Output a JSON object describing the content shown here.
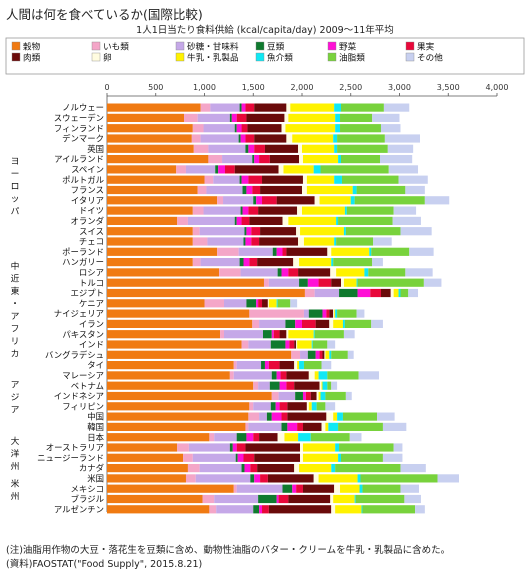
{
  "page": {
    "title": "人間は何を食べているか(国際比較)",
    "subtitle": "1人1日当たり食料供給 (kcal/capita/day) 2009〜11年平均"
  },
  "notes": [
    "(注)油脂用作物の大豆・落花生を豆類に含め、動物性油脂のバター・クリームを牛乳・乳製品に含めた。",
    "(資料)FAOSTAT(\"Food Supply\", 2015.8.21)"
  ],
  "colors": {
    "穀物": "#f07a12",
    "いも類": "#f4a6c8",
    "砂糖・甘味料": "#c5a8e8",
    "豆類": "#0f7a2e",
    "野菜": "#ff10d6",
    "果実": "#e8083a",
    "肉類": "#6a0a0a",
    "卵": "#fffce0",
    "牛乳・乳製品": "#fff200",
    "魚介類": "#10e8f4",
    "油脂類": "#78d23c",
    "その他": "#c8d0f0"
  },
  "regions": [
    "ヨーロッパ",
    "中近東・アフリカ",
    "アジア",
    "大洋州",
    "米州"
  ],
  "chart_data": {
    "type": "bar",
    "orientation": "horizontal",
    "stacked": true,
    "xlim": [
      0,
      4000
    ],
    "xticks": [
      "0",
      "500",
      "1,000",
      "1,500",
      "2,000",
      "2,500",
      "3,000",
      "3,500",
      "4,000"
    ],
    "grid": false,
    "legend_position": "top",
    "categories": [
      "ノルウェー",
      "スウェーデン",
      "フィンランド",
      "デンマーク",
      "英国",
      "アイルランド",
      "スペイン",
      "ポルトガル",
      "フランス",
      "イタリア",
      "ドイツ",
      "オランダ",
      "スイス",
      "チェコ",
      "ポーランド",
      "ハンガリー",
      "ロシア",
      "トルコ",
      "エジプト",
      "ケニア",
      "ナイジェリア",
      "イラン",
      "パキスタン",
      "インド",
      "バングラデシュ",
      "タイ",
      "マレーシア",
      "ベトナム",
      "インドネシア",
      "フィリピン",
      "中国",
      "韓国",
      "日本",
      "オーストラリア",
      "ニュージーランド",
      "カナダ",
      "米国",
      "メキシコ",
      "ブラジル",
      "アルゼンチン"
    ],
    "series": [
      {
        "name": "穀物",
        "values": [
          960,
          790,
          880,
          870,
          890,
          1040,
          710,
          1000,
          930,
          1130,
          880,
          720,
          880,
          880,
          1130,
          880,
          1150,
          1610,
          2030,
          1000,
          1460,
          1490,
          1160,
          1380,
          1890,
          1300,
          1260,
          1500,
          1690,
          1460,
          1450,
          1420,
          1050,
          720,
          780,
          830,
          810,
          1300,
          980,
          1050
        ]
      },
      {
        "name": "いも類",
        "values": [
          100,
          140,
          110,
          90,
          150,
          140,
          100,
          90,
          90,
          60,
          110,
          110,
          70,
          150,
          220,
          80,
          220,
          50,
          100,
          200,
          560,
          70,
          40,
          70,
          90,
          30,
          40,
          50,
          70,
          40,
          110,
          30,
          50,
          120,
          100,
          120,
          100,
          30,
          120,
          70
        ]
      },
      {
        "name": "砂糖・甘味料",
        "values": [
          300,
          330,
          320,
          390,
          380,
          310,
          300,
          270,
          370,
          310,
          380,
          480,
          460,
          370,
          350,
          400,
          380,
          310,
          250,
          230,
          50,
          270,
          400,
          230,
          80,
          250,
          390,
          120,
          170,
          180,
          80,
          340,
          230,
          420,
          440,
          430,
          560,
          470,
          450,
          380
        ]
      },
      {
        "name": "豆類",
        "values": [
          20,
          20,
          20,
          20,
          30,
          20,
          30,
          20,
          40,
          30,
          20,
          20,
          20,
          20,
          40,
          40,
          40,
          90,
          190,
          100,
          140,
          100,
          90,
          150,
          80,
          40,
          50,
          100,
          80,
          50,
          50,
          60,
          100,
          30,
          20,
          30,
          40,
          100,
          190,
          60
        ]
      },
      {
        "name": "野菜",
        "values": [
          40,
          50,
          50,
          50,
          60,
          50,
          70,
          70,
          60,
          60,
          60,
          50,
          50,
          60,
          60,
          60,
          70,
          110,
          130,
          20,
          40,
          70,
          20,
          40,
          40,
          40,
          40,
          70,
          30,
          40,
          100,
          100,
          70,
          40,
          60,
          60,
          60,
          40,
          20,
          30
        ]
      },
      {
        "name": "果実",
        "values": [
          90,
          100,
          60,
          90,
          110,
          110,
          100,
          140,
          80,
          150,
          100,
          80,
          90,
          80,
          40,
          80,
          100,
          130,
          110,
          40,
          30,
          140,
          60,
          50,
          30,
          110,
          60,
          80,
          50,
          80,
          60,
          60,
          60,
          90,
          110,
          70,
          80,
          70,
          100,
          70
        ]
      },
      {
        "name": "肉類",
        "values": [
          330,
          390,
          350,
          330,
          340,
          300,
          450,
          420,
          430,
          390,
          400,
          340,
          370,
          400,
          420,
          370,
          330,
          100,
          100,
          60,
          40,
          140,
          70,
          20,
          20,
          150,
          230,
          260,
          60,
          200,
          400,
          190,
          190,
          560,
          470,
          380,
          470,
          320,
          430,
          640
        ]
      },
      {
        "name": "卵",
        "values": [
          40,
          40,
          40,
          60,
          40,
          40,
          50,
          40,
          50,
          50,
          50,
          60,
          40,
          60,
          40,
          60,
          60,
          30,
          30,
          10,
          10,
          40,
          20,
          10,
          10,
          30,
          60,
          20,
          20,
          20,
          70,
          40,
          70,
          30,
          30,
          50,
          50,
          60,
          30,
          40
        ]
      },
      {
        "name": "牛乳・乳製品",
        "values": [
          450,
          480,
          510,
          420,
          330,
          360,
          310,
          280,
          470,
          320,
          440,
          490,
          450,
          310,
          390,
          330,
          290,
          130,
          50,
          80,
          10,
          100,
          260,
          150,
          40,
          20,
          40,
          10,
          20,
          30,
          40,
          30,
          140,
          330,
          360,
          330,
          400,
          200,
          220,
          270
        ]
      },
      {
        "name": "魚介類",
        "values": [
          70,
          50,
          50,
          40,
          30,
          30,
          70,
          80,
          40,
          40,
          20,
          20,
          20,
          20,
          20,
          20,
          40,
          10,
          20,
          10,
          20,
          20,
          10,
          10,
          20,
          50,
          90,
          50,
          50,
          50,
          60,
          100,
          130,
          40,
          30,
          40,
          30,
          30,
          10,
          10
        ]
      },
      {
        "name": "油脂類",
        "values": [
          440,
          330,
          420,
          490,
          520,
          400,
          700,
          580,
          500,
          720,
          480,
          560,
          560,
          380,
          390,
          400,
          380,
          680,
          80,
          130,
          200,
          270,
          300,
          150,
          170,
          180,
          320,
          40,
          210,
          90,
          350,
          460,
          400,
          560,
          430,
          670,
          790,
          390,
          500,
          540
        ]
      },
      {
        "name": "その他",
        "values": [
          260,
          280,
          200,
          360,
          260,
          330,
          300,
          300,
          200,
          250,
          230,
          290,
          320,
          190,
          250,
          110,
          280,
          180,
          100,
          70,
          80,
          120,
          110,
          80,
          60,
          100,
          210,
          60,
          60,
          100,
          180,
          240,
          120,
          90,
          200,
          260,
          220,
          190,
          170,
          100
        ]
      }
    ]
  }
}
